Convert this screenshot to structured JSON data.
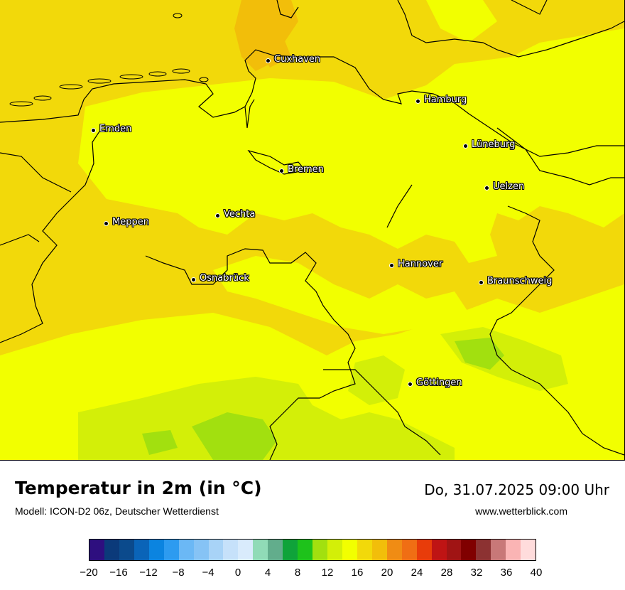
{
  "map": {
    "title": "Temperatur in 2m (in °C)",
    "subtitle": "Modell: ICON-D2 06z, Deutscher Wetterdienst",
    "datetime": "Do, 31.07.2025 09:00 Uhr",
    "website": "www.wetterblick.com",
    "cities": [
      {
        "name": "Cuxhaven"
      },
      {
        "name": "Hamburg"
      },
      {
        "name": "Emden"
      },
      {
        "name": "Lüneburg"
      },
      {
        "name": "Bremen"
      },
      {
        "name": "Uelzen"
      },
      {
        "name": "Vechta"
      },
      {
        "name": "Meppen"
      },
      {
        "name": "Hannover"
      },
      {
        "name": "Osnabrück"
      },
      {
        "name": "Braunschweig"
      },
      {
        "name": "Göttingen"
      }
    ]
  },
  "legend": {
    "colors": [
      "#2e0f7f",
      "#0b3a7a",
      "#0b4a8c",
      "#0a64b8",
      "#0b84e0",
      "#2d9bf0",
      "#6bb8f5",
      "#86c3f5",
      "#a8d3f7",
      "#c6e1fa",
      "#d9ebfc",
      "#90dbb7",
      "#62ad8c",
      "#0fa33a",
      "#1ec21b",
      "#a2e00f",
      "#d3ef08",
      "#f2ff00",
      "#f2d90a",
      "#f2be0a",
      "#f08c14",
      "#f06e14",
      "#e83c0a",
      "#bf1414",
      "#a01414",
      "#800000",
      "#8c3232",
      "#c87878",
      "#fab4b4",
      "#ffdcdc"
    ],
    "ticks": [
      "−20",
      "−16",
      "−12",
      "−8",
      "−4",
      "0",
      "4",
      "8",
      "12",
      "16",
      "20",
      "24",
      "28",
      "32",
      "36",
      "40"
    ]
  }
}
